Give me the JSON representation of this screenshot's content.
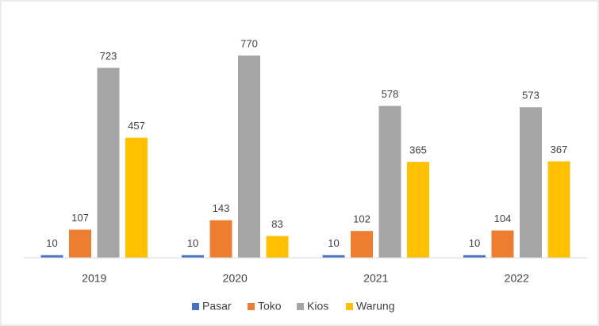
{
  "chart_data": {
    "type": "bar",
    "categories": [
      "2019",
      "2020",
      "2021",
      "2022"
    ],
    "series": [
      {
        "name": "Pasar",
        "color": "#4472c4",
        "values": [
          10,
          10,
          10,
          10
        ]
      },
      {
        "name": "Toko",
        "color": "#ed7d31",
        "values": [
          107,
          143,
          102,
          104
        ]
      },
      {
        "name": "Kios",
        "color": "#a5a5a5",
        "values": [
          723,
          770,
          578,
          573
        ]
      },
      {
        "name": "Warung",
        "color": "#ffc000",
        "values": [
          457,
          83,
          365,
          367
        ]
      }
    ],
    "legend": "bottom"
  }
}
